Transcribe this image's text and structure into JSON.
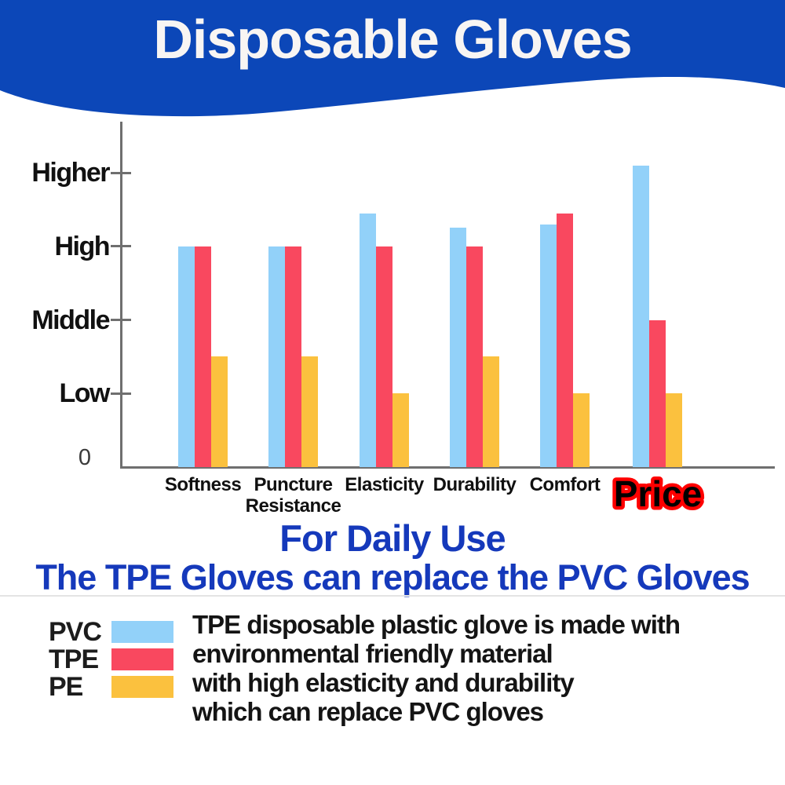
{
  "banner": {
    "title": "Disposable Gloves",
    "bg_color": "#0c47b8",
    "text_color": "#f8f5f3"
  },
  "chart_data": {
    "type": "bar",
    "title": "",
    "categories": [
      "Softness",
      "Puncture Resistance",
      "Elasticity",
      "Durability",
      "Comfort",
      "Price"
    ],
    "highlight_category": "Price",
    "series": [
      {
        "name": "PVC",
        "color": "#92d1f9",
        "values": [
          3,
          3,
          3.45,
          3.25,
          3.3,
          4.1
        ]
      },
      {
        "name": "TPE",
        "color": "#f9485f",
        "values": [
          3,
          3,
          3,
          3,
          3.45,
          2
        ]
      },
      {
        "name": "PE",
        "color": "#fbc13e",
        "values": [
          1.5,
          1.5,
          1,
          1.5,
          1,
          1
        ]
      }
    ],
    "y_axis": {
      "tick_labels": [
        "Higher",
        "High",
        "Middle",
        "Low",
        "0"
      ],
      "tick_values": [
        4,
        3,
        2,
        1,
        0
      ],
      "ylim": [
        0,
        4.7
      ]
    },
    "grid": false,
    "legend_position": "bottom-left"
  },
  "subtitle": {
    "line1": "For Daily Use",
    "line2": "The TPE Gloves can replace the PVC Gloves",
    "color": "#1539bb"
  },
  "legend": {
    "items": [
      {
        "label": "PVC",
        "color": "#92d1f9"
      },
      {
        "label": "TPE",
        "color": "#f9485f"
      },
      {
        "label": "PE",
        "color": "#fbc13e"
      }
    ]
  },
  "description": {
    "lines": [
      "TPE disposable plastic glove is made with",
      "environmental friendly material",
      "with high elasticity and durability",
      "which can replace PVC gloves"
    ]
  },
  "colors": {
    "axis": "#6f6f6f",
    "price_fill": "#000000",
    "price_stroke": "#ff0000"
  }
}
